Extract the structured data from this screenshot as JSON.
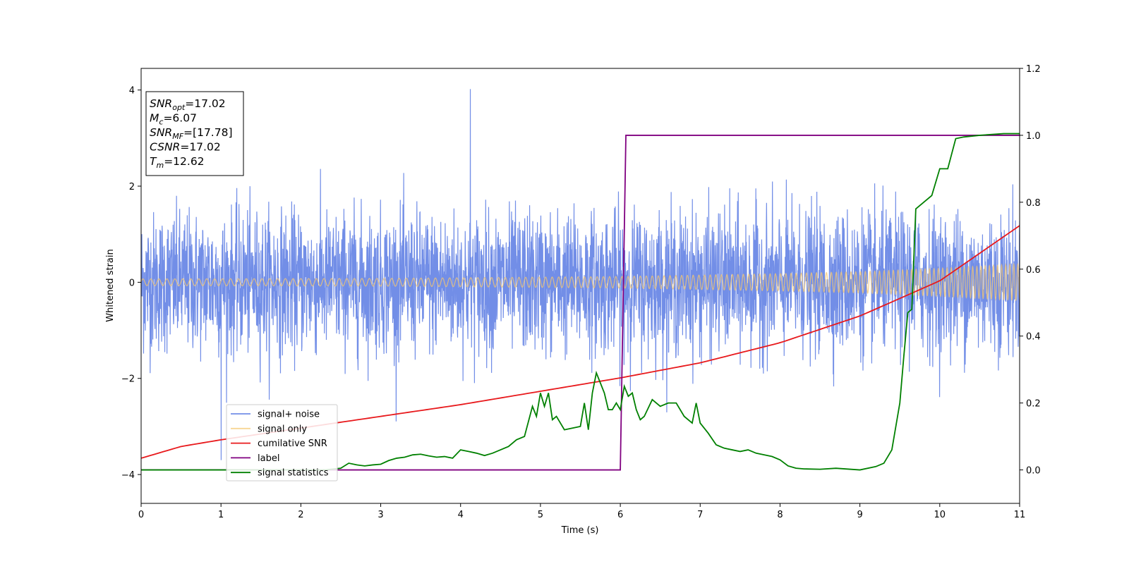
{
  "chart_data": {
    "type": "line",
    "xlabel": "Time (s)",
    "ylabel": "Whitened strain",
    "xlim": [
      0,
      11
    ],
    "ylim_left": [
      -4.6,
      4.45
    ],
    "ylim_right": [
      -0.1,
      1.2
    ],
    "x_ticks": [
      0,
      1,
      2,
      3,
      4,
      5,
      6,
      7,
      8,
      9,
      10,
      11
    ],
    "y_left_ticks": [
      -4,
      -2,
      0,
      2,
      4
    ],
    "y_left_tick_labels": [
      "−4",
      "−2",
      "0",
      "2",
      "4"
    ],
    "y_right_ticks": [
      0.0,
      0.2,
      0.4,
      0.6,
      0.8,
      1.0,
      1.2
    ],
    "y_right_tick_labels": [
      "0.0",
      "0.2",
      "0.4",
      "0.6",
      "0.8",
      "1.0",
      "1.2"
    ],
    "grid": false,
    "legend_position": "lower-left",
    "annotation": [
      {
        "base": "SNR",
        "sub": "opt",
        "value": "=17.02"
      },
      {
        "base": "M",
        "sub": "c",
        "value": "=6.07"
      },
      {
        "base": "SNR",
        "sub": "MF",
        "value": "=[17.78]"
      },
      {
        "base": "CSNR",
        "sub": "",
        "value": "=17.02"
      },
      {
        "base": "T",
        "sub": "m",
        "value": "=12.62"
      }
    ],
    "series": [
      {
        "name": "signal+ noise",
        "axis": "left",
        "color": "#6a88e6",
        "note": "dense noise band approx ±1.5, peaks up to ~4.0 near t=4.1",
        "envelope": {
          "core": 1.4,
          "max_peak": 4.02,
          "max_peak_t": 4.12,
          "min_peak": -3.7,
          "min_peak_t": 1.0
        }
      },
      {
        "name": "signal only",
        "axis": "left",
        "color": "#f5c770",
        "amplitude": {
          "x": [
            0,
            3,
            6,
            8,
            9,
            10,
            11
          ],
          "y": [
            0.07,
            0.08,
            0.12,
            0.18,
            0.22,
            0.29,
            0.38
          ]
        }
      },
      {
        "name": "cumilative SNR",
        "axis": "right",
        "color": "#e8191c",
        "x": [
          0,
          0.5,
          1,
          2,
          3,
          4,
          5,
          6,
          7,
          8,
          9,
          10,
          11
        ],
        "y": [
          0.035,
          0.07,
          0.09,
          0.125,
          0.16,
          0.195,
          0.235,
          0.275,
          0.32,
          0.38,
          0.46,
          0.565,
          0.73
        ]
      },
      {
        "name": "label",
        "axis": "right",
        "color": "#800080",
        "x": [
          0,
          6.0,
          6.07,
          11
        ],
        "y": [
          0.0,
          0.0,
          1.0,
          1.0
        ]
      },
      {
        "name": "signal statistics",
        "axis": "right",
        "color": "#008000",
        "x": [
          0,
          0.5,
          1,
          1.5,
          2,
          2.3,
          2.5,
          2.6,
          2.7,
          2.8,
          2.9,
          3.0,
          3.1,
          3.2,
          3.3,
          3.4,
          3.5,
          3.6,
          3.7,
          3.8,
          3.9,
          4.0,
          4.1,
          4.2,
          4.3,
          4.4,
          4.5,
          4.6,
          4.7,
          4.8,
          4.9,
          4.95,
          5.0,
          5.05,
          5.1,
          5.15,
          5.2,
          5.3,
          5.4,
          5.5,
          5.55,
          5.6,
          5.65,
          5.7,
          5.75,
          5.8,
          5.85,
          5.9,
          5.95,
          6.0,
          6.05,
          6.1,
          6.15,
          6.2,
          6.25,
          6.3,
          6.4,
          6.5,
          6.6,
          6.7,
          6.8,
          6.9,
          6.95,
          7.0,
          7.1,
          7.2,
          7.3,
          7.4,
          7.5,
          7.6,
          7.7,
          7.8,
          7.9,
          8.0,
          8.1,
          8.2,
          8.3,
          8.5,
          8.7,
          9.0,
          9.2,
          9.3,
          9.4,
          9.5,
          9.55,
          9.6,
          9.65,
          9.7,
          9.8,
          9.9,
          10.0,
          10.1,
          10.2,
          10.3,
          10.5,
          10.8,
          11.0
        ],
        "y": [
          0.0,
          0.0,
          0.0,
          0.0,
          0.0,
          0.0,
          0.005,
          0.02,
          0.015,
          0.012,
          0.015,
          0.017,
          0.028,
          0.035,
          0.038,
          0.045,
          0.047,
          0.042,
          0.038,
          0.04,
          0.035,
          0.06,
          0.055,
          0.05,
          0.043,
          0.05,
          0.06,
          0.07,
          0.09,
          0.1,
          0.19,
          0.16,
          0.23,
          0.19,
          0.23,
          0.15,
          0.16,
          0.12,
          0.125,
          0.13,
          0.2,
          0.12,
          0.23,
          0.29,
          0.26,
          0.23,
          0.18,
          0.18,
          0.2,
          0.18,
          0.25,
          0.22,
          0.23,
          0.18,
          0.15,
          0.16,
          0.21,
          0.19,
          0.2,
          0.2,
          0.16,
          0.14,
          0.2,
          0.14,
          0.11,
          0.075,
          0.065,
          0.06,
          0.055,
          0.06,
          0.05,
          0.045,
          0.04,
          0.03,
          0.012,
          0.005,
          0.003,
          0.002,
          0.005,
          0.0,
          0.01,
          0.02,
          0.06,
          0.2,
          0.34,
          0.47,
          0.48,
          0.78,
          0.8,
          0.82,
          0.9,
          0.9,
          0.99,
          0.995,
          1.0,
          1.005,
          1.005
        ]
      }
    ]
  },
  "colors": {
    "frame": "#000000",
    "background": "#ffffff"
  }
}
